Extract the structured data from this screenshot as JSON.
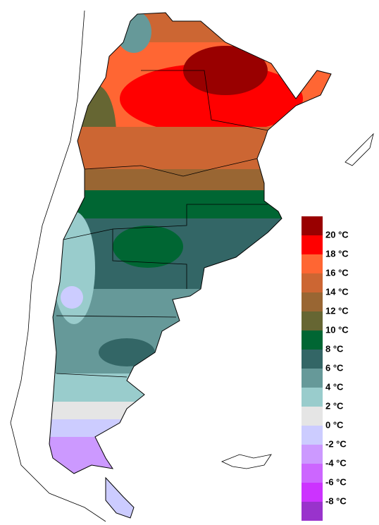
{
  "legend": {
    "colors": [
      "#990000",
      "#ff0000",
      "#ff6633",
      "#cc6633",
      "#996633",
      "#666633",
      "#006633",
      "#336666",
      "#669999",
      "#99cccc",
      "#e5e5e5",
      "#ccccff",
      "#cc99ff",
      "#cc66ff",
      "#cc33ff",
      "#9933cc"
    ],
    "labels": [
      "20 °C",
      "18 °C",
      "16 °C",
      "14 °C",
      "12 °C",
      "10 °C",
      "8 °C",
      "6 °C",
      "4 °C",
      "2 °C",
      "0 °C",
      "-2 °C",
      "-4 °C",
      "-6 °C",
      "-8 °C"
    ]
  }
}
